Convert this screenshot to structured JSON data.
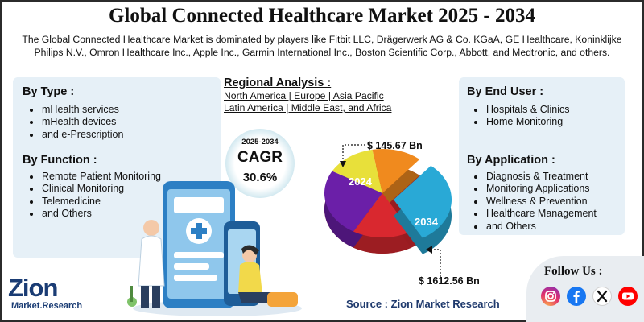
{
  "title": "Global Connected Healthcare Market 2025 - 2034",
  "intro": "The Global Connected Healthcare Market is dominated by players like Fitbit LLC, Drägerwerk AG & Co. KGaA, GE Healthcare, Koninklijke Philips N.V., Omron Healthcare Inc., Apple Inc., Garmin International Inc., Boston Scientific Corp., Abbott, and Medtronic, and others.",
  "by_type": {
    "title": "By Type :",
    "items": [
      "mHealth services",
      "mHealth devices",
      "and e-Prescription"
    ]
  },
  "by_function": {
    "title": "By Function :",
    "items": [
      "Remote Patient Monitoring",
      "Clinical Monitoring",
      "Telemedicine",
      "and Others"
    ]
  },
  "regional": {
    "title": "Regional Analysis :",
    "line1": "North America | Europe | Asia Pacific",
    "line2": "Latin America | Middle East, and Africa"
  },
  "cagr": {
    "years": "2025-2034",
    "label": "CAGR",
    "value": "30.6%"
  },
  "chart_data": {
    "type": "pie",
    "categories": [
      "2024",
      "2034"
    ],
    "values": [
      145.67,
      1612.56
    ],
    "labels": [
      "$ 145.67 Bn",
      "$ 1612.56 Bn"
    ],
    "colors": [
      "#6b1fa8",
      "#e8e03a",
      "#f08a1e",
      "#d9282f",
      "#29a9d6"
    ]
  },
  "by_end_user": {
    "title": "By End User :",
    "items": [
      "Hospitals & Clinics",
      "Home Monitoring"
    ]
  },
  "by_application": {
    "title": "By Application :",
    "items": [
      "Diagnosis & Treatment",
      "Monitoring Applications",
      "Wellness & Prevention",
      "Healthcare Management",
      "and Others"
    ]
  },
  "source": "Source : Zion Market Research",
  "follow": {
    "label": "Follow Us :",
    "icons": [
      "instagram-icon",
      "facebook-icon",
      "x-icon",
      "youtube-icon"
    ]
  },
  "logo": {
    "name": "Zion",
    "sub": "Market.Research"
  }
}
